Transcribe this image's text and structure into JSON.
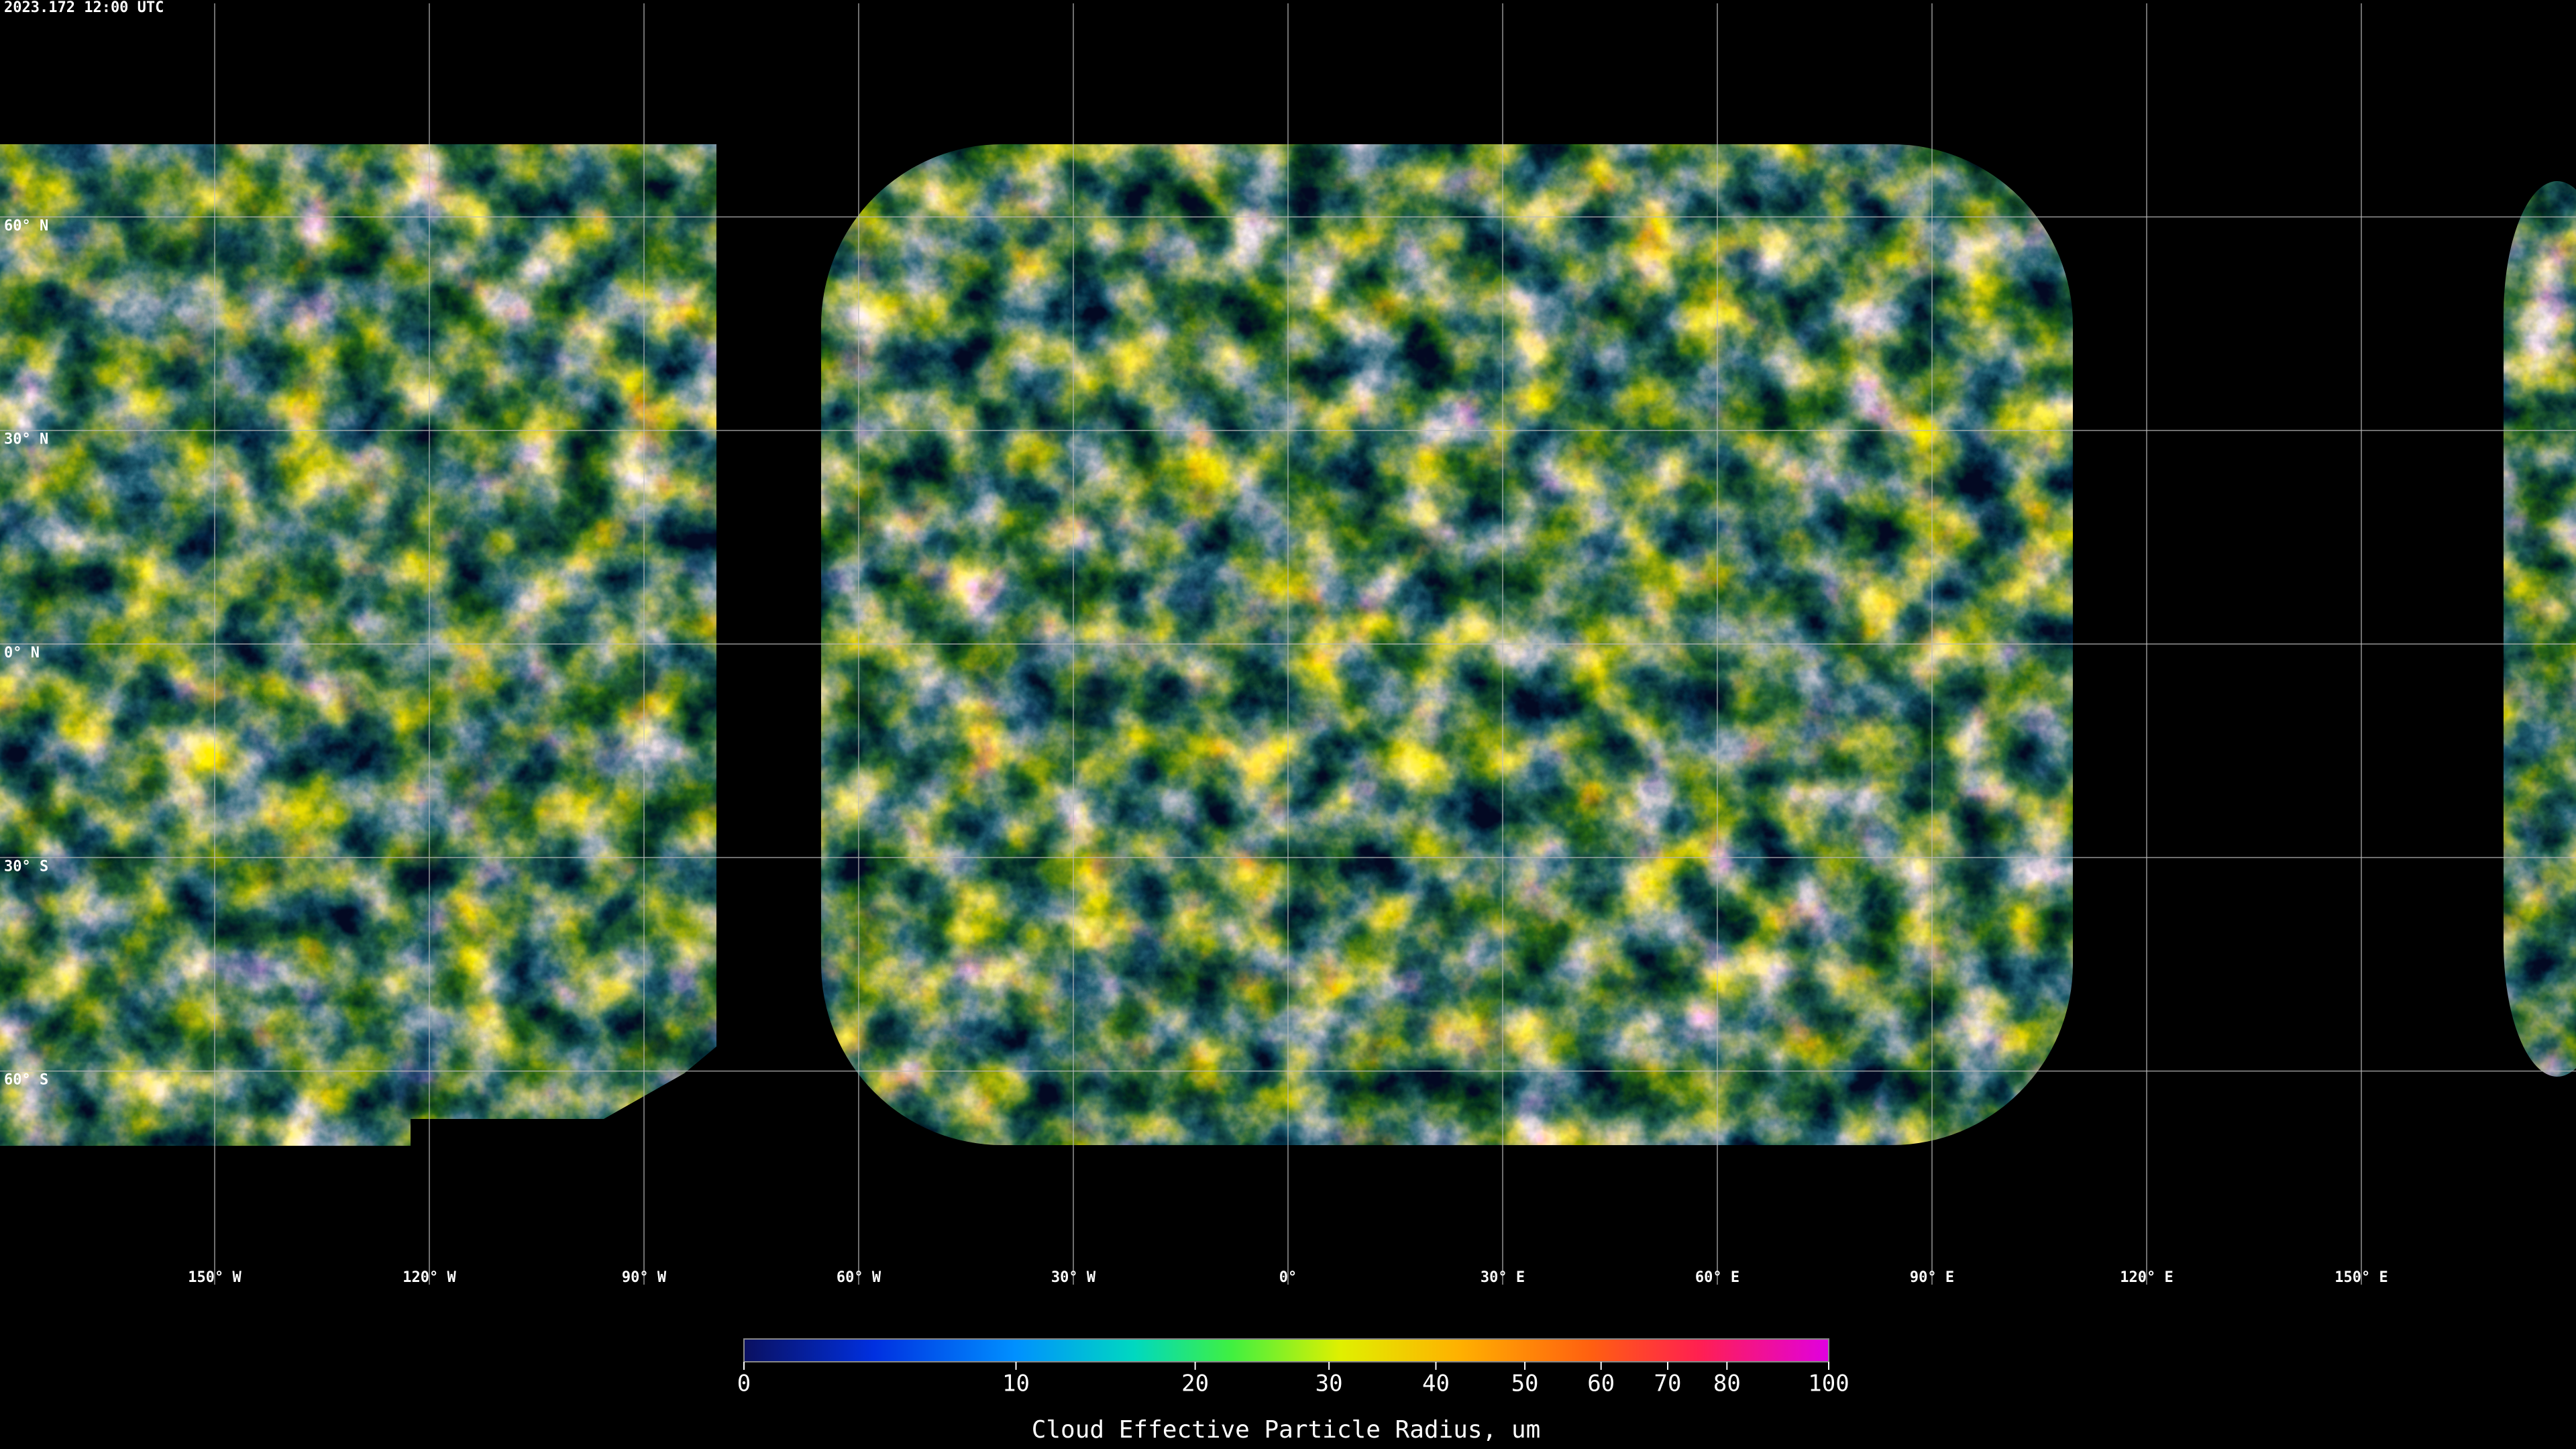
{
  "timestamp": "2023.172 12:00 UTC",
  "map": {
    "xlim": [
      -180,
      180
    ],
    "ylim": [
      -90,
      90
    ],
    "xticks": [
      {
        "value": -150,
        "label": "150° W"
      },
      {
        "value": -120,
        "label": "120° W"
      },
      {
        "value": -90,
        "label": "90° W"
      },
      {
        "value": -60,
        "label": "60° W"
      },
      {
        "value": -30,
        "label": "30° W"
      },
      {
        "value": 0,
        "label": "0°"
      },
      {
        "value": 30,
        "label": "30° E"
      },
      {
        "value": 60,
        "label": "60° E"
      },
      {
        "value": 90,
        "label": "90° E"
      },
      {
        "value": 120,
        "label": "120° E"
      },
      {
        "value": 150,
        "label": "150° E"
      }
    ],
    "yticks": [
      {
        "value": 60,
        "label": "60° N"
      },
      {
        "value": 30,
        "label": "30° N"
      },
      {
        "value": 0,
        "label": "0° N"
      },
      {
        "value": -30,
        "label": "30° S"
      },
      {
        "value": -60,
        "label": "60° S"
      }
    ],
    "grid": true
  },
  "colorbar": {
    "label": "Cloud Effective Particle Radius, um",
    "lim": [
      0,
      100
    ],
    "ticks": [
      0,
      10,
      20,
      30,
      40,
      50,
      60,
      70,
      80,
      100
    ]
  }
}
